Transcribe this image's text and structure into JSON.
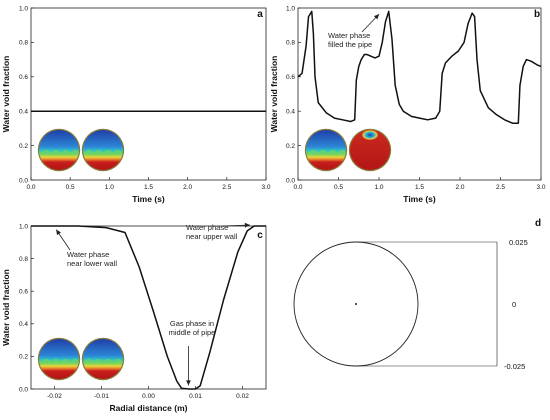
{
  "chart_data": [
    {
      "id": "a",
      "type": "line",
      "panel_label": "a",
      "xlabel": "Time (s)",
      "ylabel": "Water void fraction",
      "xlim": [
        0,
        3
      ],
      "ylim": [
        0,
        1
      ],
      "xticks": [
        "0.0",
        "0.5",
        "1.0",
        "1.5",
        "2.0",
        "2.5",
        "3.0"
      ],
      "yticks": [
        "0.0",
        "0.2",
        "0.4",
        "0.6",
        "0.8",
        "1.0"
      ],
      "series": [
        {
          "x": [
            0,
            0.2,
            0.4,
            0.6,
            0.8,
            1.0,
            1.2,
            1.4,
            1.6,
            1.8,
            2.0,
            2.2,
            2.4,
            2.6,
            2.8,
            3.0
          ],
          "y": [
            0.4,
            0.4,
            0.4,
            0.4,
            0.4,
            0.4,
            0.4,
            0.4,
            0.4,
            0.4,
            0.4,
            0.4,
            0.4,
            0.4,
            0.4,
            0.4
          ]
        }
      ],
      "thumbnails": [
        "contour-lower",
        "contour-lower"
      ]
    },
    {
      "id": "b",
      "type": "line",
      "panel_label": "b",
      "xlabel": "Time (s)",
      "ylabel": "Water void fraction",
      "xlim": [
        0,
        3
      ],
      "ylim": [
        0,
        1
      ],
      "xticks": [
        "0.0",
        "0.5",
        "1.0",
        "1.5",
        "2.0",
        "2.5",
        "3.0"
      ],
      "yticks": [
        "0.0",
        "0.2",
        "0.4",
        "0.6",
        "0.8",
        "1.0"
      ],
      "annotations": [
        {
          "text": [
            "Water phase",
            "filled the pipe"
          ],
          "x": 1.1,
          "y": 0.97
        }
      ],
      "series": [
        {
          "x": [
            0,
            0.05,
            0.1,
            0.13,
            0.17,
            0.19,
            0.21,
            0.25,
            0.35,
            0.45,
            0.55,
            0.65,
            0.7,
            0.72,
            0.75,
            0.78,
            0.82,
            0.85,
            0.9,
            0.95,
            1.0,
            1.04,
            1.08,
            1.12,
            1.16,
            1.2,
            1.25,
            1.3,
            1.4,
            1.5,
            1.6,
            1.7,
            1.75,
            1.78,
            1.82,
            1.9,
            1.98,
            2.05,
            2.1,
            2.15,
            2.18,
            2.21,
            2.25,
            2.35,
            2.45,
            2.55,
            2.65,
            2.72,
            2.74,
            2.78,
            2.82,
            2.88,
            2.95,
            3.0
          ],
          "y": [
            0.6,
            0.62,
            0.78,
            0.95,
            0.98,
            0.85,
            0.6,
            0.45,
            0.39,
            0.36,
            0.35,
            0.34,
            0.35,
            0.58,
            0.66,
            0.7,
            0.73,
            0.73,
            0.72,
            0.71,
            0.72,
            0.8,
            0.92,
            0.98,
            0.82,
            0.55,
            0.44,
            0.4,
            0.37,
            0.36,
            0.35,
            0.36,
            0.4,
            0.62,
            0.68,
            0.72,
            0.75,
            0.8,
            0.91,
            0.97,
            0.95,
            0.7,
            0.52,
            0.42,
            0.38,
            0.35,
            0.33,
            0.33,
            0.55,
            0.66,
            0.7,
            0.69,
            0.67,
            0.66
          ]
        }
      ],
      "thumbnails": [
        "contour-lower",
        "contour-full-water"
      ]
    },
    {
      "id": "c",
      "type": "line",
      "panel_label": "c",
      "xlabel": "Radial distance (m)",
      "ylabel": "Water void fraction",
      "xlim": [
        -0.025,
        0.025
      ],
      "ylim": [
        0,
        1
      ],
      "xticks": [
        "-0.02",
        "-0.01",
        "0.00",
        "0.01",
        "0.02"
      ],
      "xtick_values": [
        -0.02,
        -0.01,
        0.0,
        0.01,
        0.02
      ],
      "yticks": [
        "0.0",
        "0.2",
        "0.4",
        "0.6",
        "0.8",
        "1.0"
      ],
      "annotations": [
        {
          "text": [
            "Water phase",
            "near lower wall"
          ],
          "x": -0.019,
          "y": 0.99
        },
        {
          "text": [
            "Water phase",
            "near upper wall"
          ],
          "x": 0.022,
          "y": 1.0
        },
        {
          "text": [
            "Gas phase in",
            "middle of pipe"
          ],
          "x": 0.0085,
          "y": 0.01
        }
      ],
      "series": [
        {
          "x": [
            -0.025,
            -0.015,
            -0.009,
            -0.005,
            -0.002,
            0.001,
            0.004,
            0.006,
            0.007,
            0.0085,
            0.01,
            0.011,
            0.013,
            0.016,
            0.019,
            0.021,
            0.0225,
            0.025
          ],
          "y": [
            1.0,
            1.0,
            0.99,
            0.96,
            0.75,
            0.48,
            0.2,
            0.05,
            0.005,
            0.0,
            0.0,
            0.02,
            0.22,
            0.55,
            0.84,
            0.97,
            1.0,
            1.0
          ]
        }
      ],
      "thumbnails": [
        "contour-lower",
        "contour-lower"
      ]
    },
    {
      "id": "d",
      "type": "diagram",
      "panel_label": "d",
      "dimension_labels": [
        "0.025",
        "0",
        "-0.025"
      ]
    }
  ]
}
